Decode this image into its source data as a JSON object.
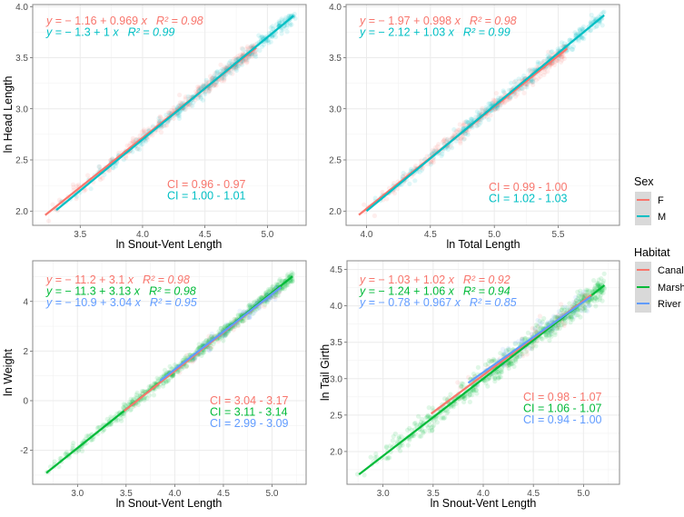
{
  "legends": [
    {
      "title": "Sex",
      "entries": [
        {
          "label": "F",
          "color": "#F8766D"
        },
        {
          "label": "M",
          "color": "#00BFC4"
        }
      ]
    },
    {
      "title": "Habitat",
      "entries": [
        {
          "label": "Canal",
          "color": "#F8766D"
        },
        {
          "label": "Marsh",
          "color": "#00BA38"
        },
        {
          "label": "River",
          "color": "#619CFF"
        }
      ]
    }
  ],
  "chart_data": [
    {
      "type": "scatter",
      "xlabel": "ln Snout-Vent Length",
      "ylabel": "ln Head Length",
      "xlim": [
        3.12,
        5.31
      ],
      "ylim": [
        1.86,
        4.02
      ],
      "xticks": [
        "3.5",
        "4.0",
        "4.5",
        "5.0"
      ],
      "yticks": [
        "2.0",
        "2.5",
        "3.0",
        "3.5",
        "4.0"
      ],
      "grid": true,
      "legend": "Sex",
      "series": [
        {
          "name": "F",
          "color": "#F8766D",
          "intercept": -1.16,
          "slope": 0.969,
          "x_range": [
            3.22,
            4.91
          ],
          "equation": "y = − 1.16 + 0.969 x",
          "r2": "R² = 0.98",
          "ci": "CI = 0.96 - 0.97"
        },
        {
          "name": "M",
          "color": "#00BFC4",
          "intercept": -1.3,
          "slope": 1,
          "x_range": [
            3.31,
            5.21
          ],
          "equation": "y = − 1.3 + 1 x",
          "r2": "R² = 0.99",
          "ci": "CI = 1.00 - 1.01"
        }
      ]
    },
    {
      "type": "scatter",
      "xlabel": "ln Total Length",
      "ylabel": "",
      "xlim": [
        3.84,
        5.98
      ],
      "ylim": [
        1.86,
        4.02
      ],
      "xticks": [
        "4.0",
        "4.5",
        "5.0",
        "5.5"
      ],
      "yticks": [
        "2.0",
        "2.5",
        "3.0",
        "3.5",
        "4.0"
      ],
      "grid": true,
      "legend": "Sex",
      "series": [
        {
          "name": "F",
          "color": "#F8766D",
          "intercept": -1.97,
          "slope": 0.998,
          "x_range": [
            3.94,
            5.57
          ],
          "equation": "y = − 1.97 + 0.998 x",
          "r2": "R² = 0.98",
          "ci": "CI = 0.99 - 1.00"
        },
        {
          "name": "M",
          "color": "#00BFC4",
          "intercept": -2.12,
          "slope": 1.03,
          "x_range": [
            4.0,
            5.86
          ],
          "equation": "y = − 2.12 + 1.03 x",
          "r2": "R² = 0.99",
          "ci": "CI = 1.02 - 1.03"
        }
      ]
    },
    {
      "type": "scatter",
      "xlabel": "ln Snout-Vent Length",
      "ylabel": "ln Weight",
      "xlim": [
        2.54,
        5.35
      ],
      "ylim": [
        -3.37,
        5.64
      ],
      "xticks": [
        "3.0",
        "3.5",
        "4.0",
        "4.5",
        "5.0"
      ],
      "yticks": [
        "-2",
        "0",
        "2",
        "4"
      ],
      "grid": true,
      "legend": "Habitat",
      "series": [
        {
          "name": "Canal",
          "color": "#F8766D",
          "intercept": -11.2,
          "slope": 3.1,
          "x_range": [
            3.48,
            5.09
          ],
          "equation": "y = − 11.2 + 3.1 x",
          "r2": "R² = 0.98",
          "ci": "CI = 3.04 - 3.17"
        },
        {
          "name": "Marsh",
          "color": "#00BA38",
          "intercept": -11.3,
          "slope": 3.13,
          "x_range": [
            2.68,
            5.21
          ],
          "equation": "y = − 11.3 + 3.13 x",
          "r2": "R² = 0.98",
          "ci": "CI = 3.11 - 3.14"
        },
        {
          "name": "River",
          "color": "#619CFF",
          "intercept": -10.9,
          "slope": 3.04,
          "x_range": [
            3.85,
            5.09
          ],
          "equation": "y = − 10.9 + 3.04 x",
          "r2": "R² = 0.95",
          "ci": "CI = 2.99 - 3.09"
        }
      ]
    },
    {
      "type": "scatter",
      "xlabel": "ln Snout-Vent Length",
      "ylabel": "ln Tail Girth",
      "xlim": [
        2.64,
        5.36
      ],
      "ylim": [
        1.55,
        4.62
      ],
      "xticks": [
        "3.0",
        "3.5",
        "4.0",
        "4.5",
        "5.0"
      ],
      "yticks": [
        "2.0",
        "2.5",
        "3.0",
        "3.5",
        "4.0",
        "4.5"
      ],
      "grid": true,
      "legend": "Habitat",
      "series": [
        {
          "name": "Canal",
          "color": "#F8766D",
          "intercept": -1.03,
          "slope": 1.02,
          "x_range": [
            3.48,
            5.08
          ],
          "equation": "y = − 1.03 + 1.02 x",
          "r2": "R² = 0.92",
          "ci": "CI = 0.98 - 1.07"
        },
        {
          "name": "Marsh",
          "color": "#00BA38",
          "intercept": -1.24,
          "slope": 1.06,
          "x_range": [
            2.76,
            5.21
          ],
          "equation": "y = − 1.24 + 1.06 x",
          "r2": "R² = 0.94",
          "ci": "CI = 1.06 - 1.07"
        },
        {
          "name": "River",
          "color": "#619CFF",
          "intercept": -0.78,
          "slope": 0.967,
          "x_range": [
            3.85,
            5.07
          ],
          "equation": "y = − 0.78 + 0.967 x",
          "r2": "R² = 0.85",
          "ci": "CI = 0.94 - 1.00"
        }
      ]
    }
  ]
}
